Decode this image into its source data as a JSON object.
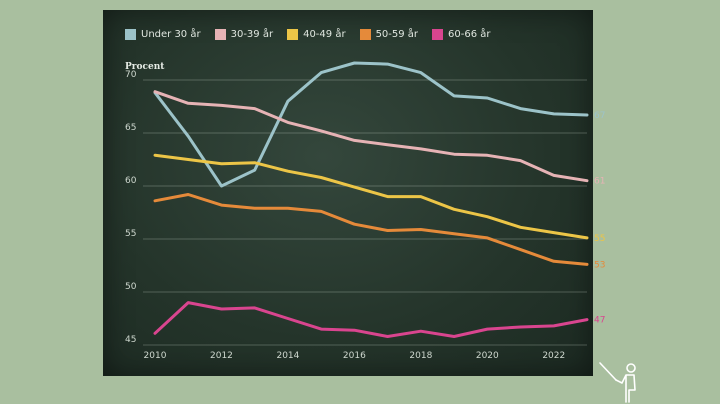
{
  "chart_data": {
    "type": "line",
    "title": "",
    "xlabel": "",
    "ylabel": "Procent",
    "xlim": [
      2010,
      2023
    ],
    "ylim": [
      45,
      70
    ],
    "x": [
      2010,
      2011,
      2012,
      2013,
      2014,
      2015,
      2016,
      2017,
      2018,
      2019,
      2020,
      2021,
      2022,
      2023
    ],
    "x_ticks": [
      2010,
      2012,
      2014,
      2016,
      2018,
      2020,
      2022
    ],
    "y_ticks": [
      45,
      50,
      55,
      60,
      65,
      70
    ],
    "grid": "horizontal",
    "legend_position": "top-left",
    "series": [
      {
        "name": "Under 30 år",
        "color": "#9cc3c9",
        "end_label": "67",
        "values": [
          68.8,
          64.7,
          60.0,
          61.5,
          68.0,
          70.7,
          71.6,
          71.5,
          70.7,
          68.5,
          68.3,
          67.3,
          66.8,
          66.7
        ]
      },
      {
        "name": "30-39 år",
        "color": "#e6b3b5",
        "end_label": "61",
        "values": [
          68.9,
          67.8,
          67.6,
          67.3,
          66.0,
          65.2,
          64.3,
          63.9,
          63.5,
          63.0,
          62.9,
          62.4,
          61.0,
          60.5
        ]
      },
      {
        "name": "40-49 år",
        "color": "#ecc547",
        "end_label": "55",
        "values": [
          62.9,
          62.5,
          62.1,
          62.2,
          61.4,
          60.8,
          59.9,
          59.0,
          59.0,
          57.8,
          57.1,
          56.1,
          55.6,
          55.1
        ]
      },
      {
        "name": "50-59 år",
        "color": "#e58a3a",
        "end_label": "53",
        "values": [
          58.6,
          59.2,
          58.2,
          57.9,
          57.9,
          57.6,
          56.4,
          55.8,
          55.9,
          55.5,
          55.1,
          54.0,
          52.9,
          52.6
        ]
      },
      {
        "name": "60-66 år",
        "color": "#d9458f",
        "end_label": "47",
        "values": [
          46.1,
          49.0,
          48.4,
          48.5,
          47.5,
          46.5,
          46.4,
          45.8,
          46.3,
          45.8,
          46.5,
          46.7,
          46.8,
          47.4
        ]
      }
    ]
  },
  "decorations": {
    "corner_icon": "teacher-pointing-icon"
  }
}
